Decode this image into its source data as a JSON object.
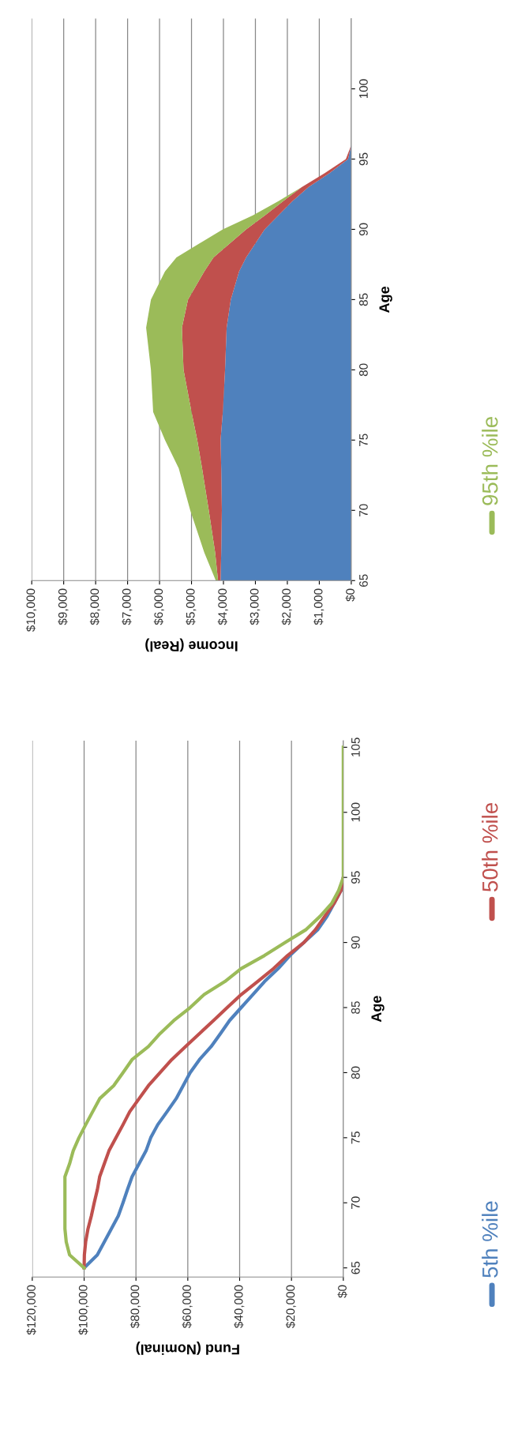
{
  "chart_data": [
    {
      "type": "area",
      "stacked": true,
      "orientation": "horizontal",
      "xlabel": "Income (Real)",
      "ylabel": "Age",
      "grid": "x",
      "x": [
        65,
        67,
        70,
        73,
        75,
        77,
        80,
        83,
        85,
        87,
        88,
        89,
        90,
        91,
        92,
        93,
        94,
        95,
        96
      ],
      "xlim": [
        10000,
        0
      ],
      "xticks": [
        {
          "value": 0,
          "label": "$0"
        },
        {
          "value": 1000,
          "label": "$1,000"
        },
        {
          "value": 2000,
          "label": "$2,000"
        },
        {
          "value": 3000,
          "label": "$3,000"
        },
        {
          "value": 4000,
          "label": "$4,000"
        },
        {
          "value": 5000,
          "label": "$5,000"
        },
        {
          "value": 6000,
          "label": "$6,000"
        },
        {
          "value": 7000,
          "label": "$7,000"
        },
        {
          "value": 8000,
          "label": "$8,000"
        },
        {
          "value": 9000,
          "label": "$9,000"
        },
        {
          "value": 10000,
          "label": "$10,000"
        }
      ],
      "ylim": [
        65,
        105
      ],
      "yticks": [
        65,
        70,
        75,
        80,
        85,
        90,
        95,
        100
      ],
      "series": [
        {
          "color": "#4f81bd",
          "values": [
            4090,
            4070,
            4050,
            4070,
            4090,
            4020,
            3950,
            3900,
            3770,
            3510,
            3290,
            3000,
            2710,
            2280,
            1840,
            1340,
            680,
            100,
            0
          ]
        },
        {
          "color": "#c0504d",
          "values": [
            80,
            190,
            410,
            600,
            730,
            980,
            1300,
            1400,
            1340,
            1090,
            1020,
            800,
            580,
            420,
            290,
            210,
            150,
            70,
            0
          ]
        },
        {
          "color": "#9bbb59",
          "values": [
            70,
            340,
            580,
            730,
            1010,
            1200,
            1020,
            1120,
            1160,
            1230,
            1160,
            950,
            730,
            380,
            150,
            0,
            0,
            0,
            0
          ]
        }
      ]
    },
    {
      "type": "line",
      "orientation": "horizontal",
      "xlabel": "Fund (Nominal)",
      "ylabel": "Age",
      "grid": "x",
      "legend": "right",
      "x": [
        65,
        66,
        67,
        68,
        69,
        70,
        71,
        72,
        73,
        74,
        75,
        76,
        77,
        78,
        79,
        80,
        81,
        82,
        83,
        84,
        85,
        86,
        87,
        88,
        89,
        90,
        91,
        92,
        93,
        94,
        95,
        96,
        97,
        98,
        99,
        100,
        101,
        102,
        103,
        104,
        105
      ],
      "xlim": [
        120000,
        0
      ],
      "xticks": [
        {
          "value": 0,
          "label": "$0"
        },
        {
          "value": 20000,
          "label": "$20,000"
        },
        {
          "value": 40000,
          "label": "$40,000"
        },
        {
          "value": 60000,
          "label": "$60,000"
        },
        {
          "value": 80000,
          "label": "$80,000"
        },
        {
          "value": 100000,
          "label": "$100,000"
        },
        {
          "value": 120000,
          "label": "$120,000"
        }
      ],
      "ylim": [
        64.3,
        105.5
      ],
      "yticks": [
        65,
        70,
        75,
        80,
        85,
        90,
        95,
        100,
        105
      ],
      "series": [
        {
          "name": "5th %ile",
          "color": "#4f81bd",
          "values": [
            100000,
            94900,
            92200,
            89500,
            86800,
            85000,
            83300,
            81500,
            78800,
            76100,
            74300,
            71600,
            68000,
            64500,
            61800,
            59100,
            55500,
            51000,
            47400,
            43900,
            39400,
            34900,
            30400,
            25100,
            20600,
            15200,
            9800,
            6300,
            3600,
            900,
            0,
            null,
            null,
            null,
            null,
            null,
            null,
            null,
            null,
            null,
            null
          ]
        },
        {
          "name": "50th %ile",
          "color": "#c0504d",
          "values": [
            100000,
            99900,
            99400,
            98500,
            97200,
            96100,
            94900,
            94000,
            92200,
            90400,
            87700,
            85000,
            82400,
            78800,
            75200,
            70700,
            66200,
            60900,
            55500,
            50100,
            44800,
            39400,
            33100,
            26900,
            21500,
            15200,
            10700,
            7200,
            3600,
            900,
            0,
            null,
            null,
            null,
            null,
            null,
            null,
            null,
            null,
            null,
            null
          ]
        },
        {
          "name": "95th %ile",
          "color": "#9bbb59",
          "values": [
            100000,
            105600,
            106900,
            107400,
            107400,
            107400,
            107400,
            107400,
            105600,
            104200,
            102000,
            99400,
            96700,
            94000,
            88600,
            85000,
            81500,
            75200,
            70700,
            65400,
            59100,
            53700,
            45700,
            39400,
            30400,
            22400,
            14300,
            9000,
            4500,
            1800,
            0,
            0,
            0,
            0,
            0,
            0,
            0,
            0,
            0,
            0,
            0
          ]
        }
      ]
    }
  ]
}
